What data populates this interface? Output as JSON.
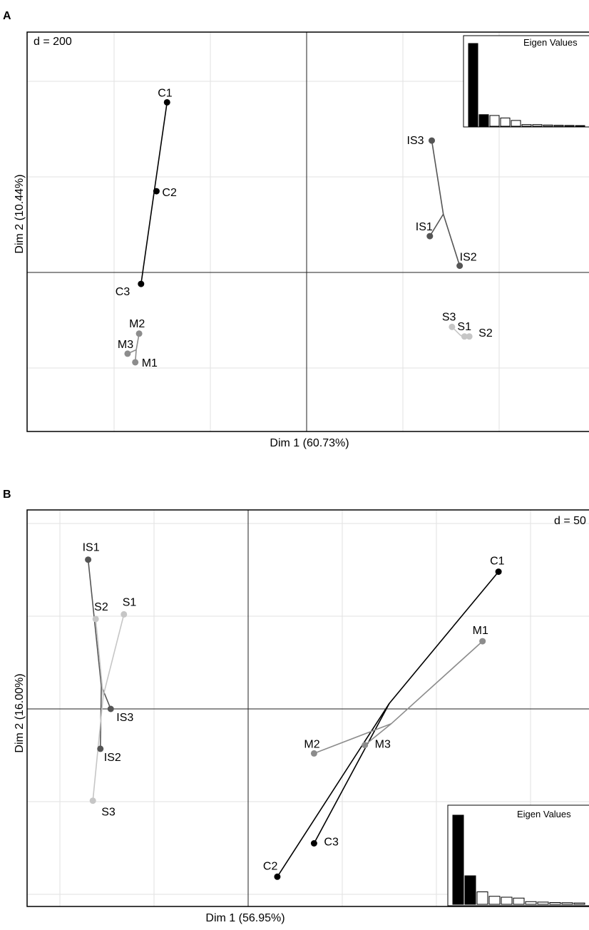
{
  "chart_data": [
    {
      "panel": "A",
      "type": "scatter",
      "scale_label": "d = 200",
      "xlabel": "Dim 1 (60.73%)",
      "ylabel": "Dim 2 (10.44%)",
      "groups": [
        {
          "color": "#000000",
          "center": {
            "x": -1.58,
            "y": 0.87
          },
          "points": [
            {
              "name": "C1",
              "x": -1.45,
              "y": 1.78
            },
            {
              "name": "C2",
              "x": -1.56,
              "y": 0.85
            },
            {
              "name": "C3",
              "x": -1.72,
              "y": -0.12
            }
          ]
        },
        {
          "color": "#555555",
          "center": {
            "x": 1.42,
            "y": 0.61
          },
          "points": [
            {
              "name": "IS3",
              "x": 1.3,
              "y": 1.38
            },
            {
              "name": "IS1",
              "x": 1.28,
              "y": 0.38
            },
            {
              "name": "IS2",
              "x": 1.59,
              "y": 0.07
            }
          ]
        },
        {
          "color": "#8c8c8c",
          "center": {
            "x": -1.77,
            "y": -0.81
          },
          "points": [
            {
              "name": "M2",
              "x": -1.74,
              "y": -0.64
            },
            {
              "name": "M3",
              "x": -1.86,
              "y": -0.85
            },
            {
              "name": "M1",
              "x": -1.78,
              "y": -0.94
            }
          ]
        },
        {
          "color": "#c6c6c6",
          "center": {
            "x": 1.6,
            "y": -0.66
          },
          "points": [
            {
              "name": "S3",
              "x": 1.51,
              "y": -0.57
            },
            {
              "name": "S1",
              "x": 1.64,
              "y": -0.67
            },
            {
              "name": "S2",
              "x": 1.69,
              "y": -0.67
            }
          ]
        }
      ],
      "eigenvalues": [
        100,
        14,
        13,
        10,
        7,
        2,
        2,
        1.5,
        1.2,
        1,
        0.8
      ],
      "eigen_axes_kept": 2,
      "eigen_title": "Eigen Values"
    },
    {
      "panel": "B",
      "type": "scatter",
      "scale_label": "d = 50",
      "xlabel": "Dim 1 (56.95%)",
      "ylabel": "Dim 2 (16.00%)",
      "groups": [
        {
          "color": "#555555",
          "center": {
            "x": -1.56,
            "y": 0.25
          },
          "points": [
            {
              "name": "IS1",
              "x": -1.7,
              "y": 1.61
            },
            {
              "name": "IS3",
              "x": -1.46,
              "y": 0.0
            },
            {
              "name": "IS2",
              "x": -1.57,
              "y": -0.43
            }
          ]
        },
        {
          "color": "#c6c6c6",
          "center": {
            "x": -1.54,
            "y": 0.14
          },
          "points": [
            {
              "name": "S1",
              "x": -1.32,
              "y": 1.02
            },
            {
              "name": "S2",
              "x": -1.62,
              "y": 0.97
            },
            {
              "name": "S3",
              "x": -1.65,
              "y": -0.99
            }
          ]
        },
        {
          "color": "#000000",
          "center": {
            "x": 1.5,
            "y": 0.06
          },
          "points": [
            {
              "name": "C1",
              "x": 2.66,
              "y": 1.48
            },
            {
              "name": "C3",
              "x": 0.7,
              "y": -1.45
            },
            {
              "name": "C2",
              "x": 0.31,
              "y": -1.81
            }
          ]
        },
        {
          "color": "#8c8c8c",
          "center": {
            "x": 1.52,
            "y": -0.16
          },
          "points": [
            {
              "name": "M1",
              "x": 2.49,
              "y": 0.73
            },
            {
              "name": "M3",
              "x": 1.24,
              "y": -0.39
            },
            {
              "name": "M2",
              "x": 0.7,
              "y": -0.48
            }
          ]
        }
      ],
      "eigenvalues": [
        100,
        32,
        14,
        9,
        8,
        7,
        3,
        2.5,
        2,
        1.8,
        1.5
      ],
      "eigen_axes_kept": 2,
      "eigen_title": "Eigen Values"
    }
  ]
}
